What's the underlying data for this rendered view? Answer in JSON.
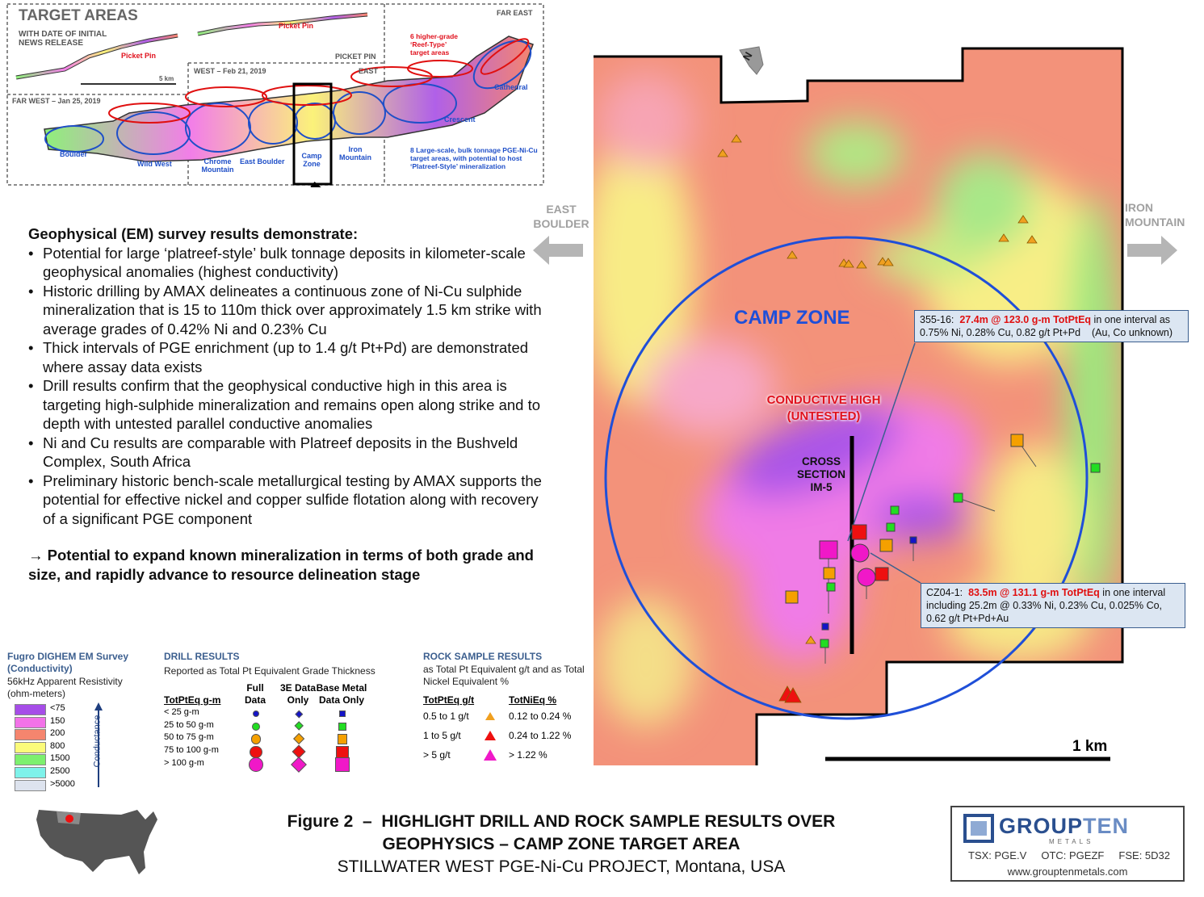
{
  "inset": {
    "title": "TARGET AREAS",
    "subtitle": "WITH DATE OF INITIAL NEWS RELEASE",
    "picket_pin_west": "Picket Pin",
    "picket_pin_north": "Picket Pin",
    "picket_pin_box": "PICKET PIN",
    "far_east": "FAR EAST",
    "east": "EAST",
    "west": "WEST – Feb 21, 2019",
    "far_west": "FAR WEST – Jan 25, 2019",
    "scale": "5 km",
    "reef_note": "6 higher-grade ‘Reef-Type’ target areas",
    "areas": [
      "Boulder",
      "Wild West",
      "Chrome Mountain",
      "East Boulder",
      "Camp Zone",
      "Iron Mountain",
      "Crescent",
      "Cathedral"
    ],
    "platreef_note": "8 Large-scale, bulk tonnage PGE-Ni-Cu target areas, with potential to host ‘Platreef-Style’ mineralization"
  },
  "summary": {
    "heading": "Geophysical (EM) survey results demonstrate:",
    "bullets": [
      "Potential for large ‘platreef-style’ bulk tonnage deposits in kilometer-scale geophysical anomalies (highest conductivity)",
      "Historic drilling by AMAX delineates a continuous zone of Ni-Cu sulphide mineralization that is 15 to 110m thick over approximately 1.5 km strike with average grades of 0.42% Ni and 0.23% Cu",
      "Thick intervals of PGE enrichment (up to 1.4 g/t Pt+Pd) are demonstrated where assay data exists",
      "Drill results confirm that the geophysical conductive high in this area is targeting high-sulphide mineralization and remains open along strike and to depth with untested parallel conductive anomalies",
      "Ni and Cu results are comparable with Platreef deposits in the Bushveld Complex, South Africa",
      "Preliminary historic bench-scale metallurgical testing by AMAX supports the potential for effective nickel and copper sulfide flotation along with recovery of a significant PGE component"
    ],
    "conclusion": "→ Potential to expand known mineralization in terms of both grade and size, and rapidly advance to resource delineation stage"
  },
  "map": {
    "west_label": "EAST BOULDER",
    "east_label": "IRON MOUNTAIN",
    "north": "N",
    "zone": "CAMP ZONE",
    "conductive_high": "CONDUCTIVE HIGH (UNTESTED)",
    "cross_section": "CROSS SECTION IM-5",
    "scale": "1 km",
    "callouts": [
      {
        "hole": "355-16:",
        "highlight": "27.4m @ 123.0 g-m TotPtEq",
        "text": "in one interval as 0.75% Ni, 0.28% Cu, 0.82 g/t Pt+Pd    (Au, Co unknown)"
      },
      {
        "hole": "CZ04-1:",
        "highlight": "83.5m @ 131.1 g-m TotPtEq",
        "text": "in one interval including 25.2m @ 0.33% Ni, 0.23% Cu, 0.025% Co, 0.62 g/t Pt+Pd+Au"
      }
    ]
  },
  "em_legend": {
    "title": "Fugro DIGHEM EM Survey (Conductivity)",
    "subtitle": "56kHz Apparent Resistivity (ohm-meters)",
    "classes": [
      {
        "label": "<75",
        "color": "#a64de8"
      },
      {
        "label": "150",
        "color": "#f272e8"
      },
      {
        "label": "200",
        "color": "#f5856e"
      },
      {
        "label": "800",
        "color": "#fbfb7a"
      },
      {
        "label": "1500",
        "color": "#7df06e"
      },
      {
        "label": "2500",
        "color": "#7ef2ea"
      },
      {
        "label": ">5000",
        "color": "#dde3ee"
      }
    ],
    "axis": "Conductance"
  },
  "drill_legend": {
    "title": "DRILL RESULTS",
    "subtitle": "Reported as Total Pt Equivalent Grade Thickness",
    "headers": [
      "TotPtEq g-m",
      "Full Data",
      "3E Data Only",
      "Base Metal Data Only"
    ],
    "rows": [
      {
        "label": "< 25 g-m",
        "color": "#1414c8"
      },
      {
        "label": "25 to 50 g-m",
        "color": "#22dd22"
      },
      {
        "label": "50 to 75 g-m",
        "color": "#f5a000"
      },
      {
        "label": "75 to 100 g-m",
        "color": "#ee1010"
      },
      {
        "label": "> 100 g-m",
        "color": "#f018c8"
      }
    ]
  },
  "rock_legend": {
    "title": "ROCK SAMPLE RESULTS",
    "subtitle": "as Total Pt Equivalent g/t and as Total Nickel Equivalent %",
    "headers": [
      "TotPtEq g/t",
      "TotNiEq %"
    ],
    "rows": [
      {
        "pt": "0.5 to 1 g/t",
        "ni": "0.12 to 0.24 %",
        "color": "#f0a020"
      },
      {
        "pt": "1 to 5 g/t",
        "ni": "0.24 to 1.22 %",
        "color": "#ee1010"
      },
      {
        "pt": "> 5 g/t",
        "ni": "> 1.22 %",
        "color": "#f018c8"
      }
    ]
  },
  "footer": {
    "line1": "Figure 2  –  HIGHLIGHT DRILL AND ROCK SAMPLE RESULTS OVER",
    "line2": "GEOPHYSICS – CAMP ZONE TARGET AREA",
    "line3": "STILLWATER WEST PGE-Ni-Cu PROJECT, Montana, USA"
  },
  "logo": {
    "group": "GROUP",
    "ten": "TEN",
    "metals": "METALS",
    "tickers": [
      "TSX: PGE.V",
      "OTC: PGEZF",
      "FSE: 5D32"
    ],
    "url": "www.grouptenmetals.com"
  }
}
